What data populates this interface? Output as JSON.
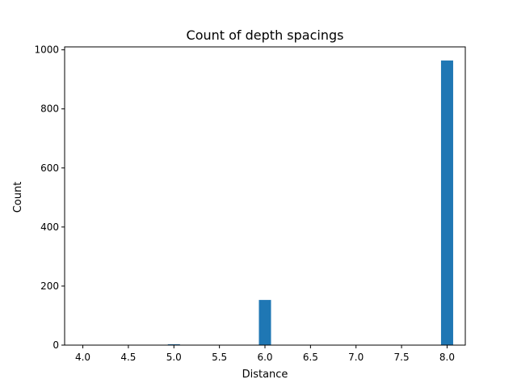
{
  "chart_data": {
    "type": "bar",
    "title": "Count of depth spacings",
    "xlabel": "Distance",
    "ylabel": "Count",
    "xlim": [
      3.8,
      8.2
    ],
    "ylim": [
      0,
      1010
    ],
    "xticks": [
      "4.0",
      "4.5",
      "5.0",
      "5.5",
      "6.0",
      "6.5",
      "7.0",
      "7.5",
      "8.0"
    ],
    "yticks": [
      "0",
      "200",
      "400",
      "600",
      "800",
      "1000"
    ],
    "bin_width": 0.1333,
    "bars": [
      {
        "x": 4.0,
        "value": 1
      },
      {
        "x": 5.0,
        "value": 3
      },
      {
        "x": 6.0,
        "value": 153
      },
      {
        "x": 8.0,
        "value": 964
      }
    ],
    "bar_color": "#1f77b4",
    "grid": false,
    "legend": false
  }
}
